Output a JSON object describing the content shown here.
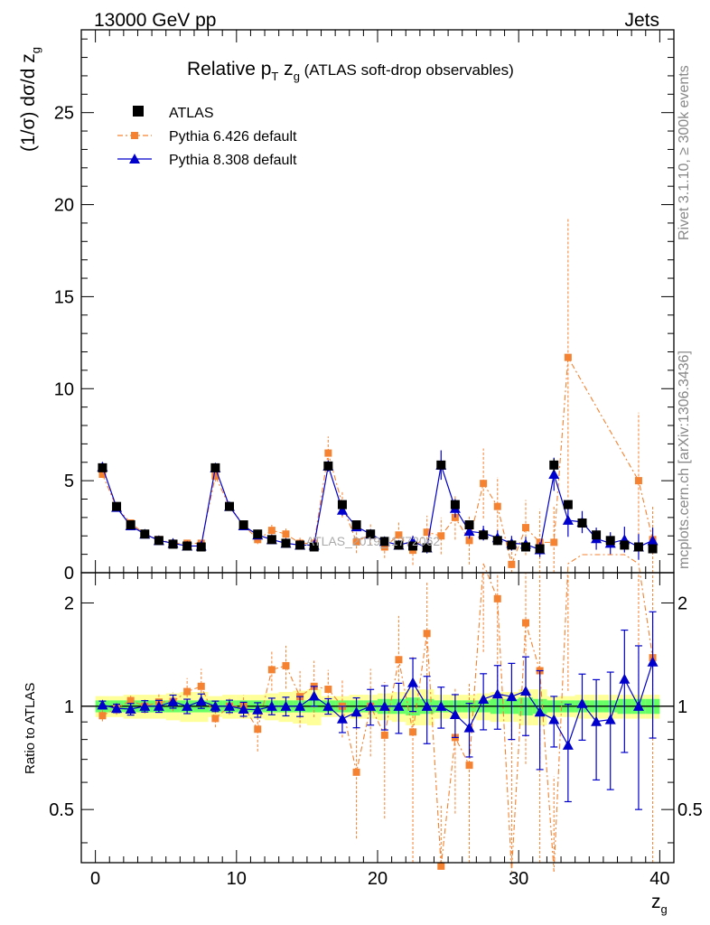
{
  "header": {
    "left": "13000 GeV pp",
    "right": "Jets"
  },
  "side_labels": {
    "rivet": "Rivet 3.1.10, ≥ 300k events",
    "mcplots": "mcplots.cern.ch [arXiv:1306.3436]"
  },
  "watermark": "ATLAS_2019_I1772062",
  "chart_data": {
    "type": "scatter",
    "title": "Relative p_T z_g (ATLAS soft-drop observables)",
    "title_parts": {
      "main": "Relative p",
      "sub_T": "T",
      "mid": " z",
      "sub_g": "g",
      "tail": " (ATLAS soft-drop observables)"
    },
    "xlabel": "z_g",
    "xlabel_parts": {
      "main": "z",
      "sub": "g"
    },
    "ylabel": "(1/σ) dσ/d z_g",
    "ylabel_parts": {
      "main": "(1/σ) dσ/d z",
      "sub": "g"
    },
    "ratio_ylabel": "Ratio to ATLAS",
    "xlim": [
      -1,
      41
    ],
    "ylim": [
      0,
      29.5
    ],
    "ratio_ylim": [
      0.35,
      2.45
    ],
    "xticks": [
      0,
      10,
      20,
      30,
      40
    ],
    "yticks": [
      0,
      5,
      10,
      15,
      20,
      25
    ],
    "ratio_yticks": [
      0.5,
      1,
      2
    ],
    "legend": [
      {
        "label": "ATLAS",
        "marker": "square",
        "color": "#000000"
      },
      {
        "label": "Pythia 6.426 default",
        "marker": "square-small",
        "color": "#f58231"
      },
      {
        "label": "Pythia 8.308 default",
        "marker": "triangle",
        "color": "#0000cc"
      }
    ],
    "x": [
      0.5,
      1.5,
      2.5,
      3.5,
      4.5,
      5.5,
      6.5,
      7.5,
      8.5,
      9.5,
      10.5,
      11.5,
      12.5,
      13.5,
      14.5,
      15.5,
      16.5,
      17.5,
      18.5,
      19.5,
      20.5,
      21.5,
      22.5,
      23.5,
      24.5,
      25.5,
      26.5,
      27.5,
      28.5,
      29.5,
      30.5,
      31.5,
      32.5,
      33.5,
      34.5,
      35.5,
      36.5,
      37.5,
      38.5,
      39.5
    ],
    "series": [
      {
        "name": "ATLAS",
        "color": "#000000",
        "values": [
          5.7,
          3.6,
          2.6,
          2.1,
          1.75,
          1.55,
          1.45,
          1.4,
          5.7,
          3.6,
          2.6,
          2.1,
          1.8,
          1.6,
          1.5,
          1.4,
          5.8,
          3.7,
          2.6,
          2.1,
          1.7,
          1.5,
          1.45,
          1.35,
          5.85,
          3.7,
          2.6,
          2.05,
          1.75,
          1.5,
          1.4,
          1.3,
          5.85,
          3.7,
          2.7,
          2.05,
          1.75,
          1.5,
          1.4,
          1.3
        ],
        "errors": [
          0.15,
          0.1,
          0.08,
          0.07,
          0.06,
          0.05,
          0.05,
          0.05,
          0.15,
          0.1,
          0.08,
          0.07,
          0.06,
          0.05,
          0.05,
          0.05,
          0.15,
          0.1,
          0.08,
          0.07,
          0.06,
          0.05,
          0.05,
          0.05,
          0.2,
          0.15,
          0.1,
          0.1,
          0.1,
          0.1,
          0.1,
          0.1,
          0.35,
          0.25,
          0.2,
          0.2,
          0.2,
          0.2,
          0.2,
          0.2
        ],
        "band_inner": [
          0.04,
          0.04,
          0.04,
          0.04,
          0.04,
          0.04,
          0.04,
          0.04,
          0.04,
          0.04,
          0.04,
          0.04,
          0.04,
          0.04,
          0.04,
          0.04,
          0.04,
          0.04,
          0.04,
          0.04,
          0.05,
          0.05,
          0.06,
          0.05,
          0.04,
          0.04,
          0.04,
          0.04,
          0.05,
          0.05,
          0.06,
          0.05,
          0.04,
          0.04,
          0.04,
          0.04,
          0.04,
          0.05,
          0.05,
          0.05
        ],
        "band_outer": [
          0.07,
          0.07,
          0.08,
          0.08,
          0.08,
          0.09,
          0.1,
          0.1,
          0.07,
          0.08,
          0.08,
          0.08,
          0.09,
          0.1,
          0.11,
          0.12,
          0.07,
          0.07,
          0.08,
          0.08,
          0.09,
          0.1,
          0.12,
          0.12,
          0.08,
          0.08,
          0.08,
          0.09,
          0.1,
          0.1,
          0.12,
          0.12,
          0.07,
          0.07,
          0.08,
          0.08,
          0.08,
          0.08,
          0.08,
          0.08
        ]
      },
      {
        "name": "Pythia 6.426 default",
        "color": "#f58231",
        "values": [
          5.35,
          3.55,
          2.7,
          2.1,
          1.8,
          1.6,
          1.6,
          1.6,
          5.25,
          3.6,
          2.6,
          1.8,
          2.3,
          2.1,
          1.6,
          1.6,
          6.5,
          3.7,
          1.67,
          2.1,
          1.4,
          2.05,
          1.22,
          2.2,
          2.0,
          3.0,
          1.75,
          4.85,
          3.6,
          0.45,
          2.45,
          1.65,
          1.65,
          11.7,
          null,
          null,
          null,
          null,
          5.0,
          1.8
        ],
        "errors": [
          0.2,
          0.15,
          0.12,
          0.1,
          0.1,
          0.1,
          0.15,
          0.2,
          0.3,
          0.2,
          0.2,
          0.25,
          0.3,
          0.3,
          0.3,
          0.3,
          0.9,
          0.7,
          0.6,
          0.6,
          0.6,
          0.7,
          0.8,
          0.9,
          1.0,
          1.2,
          1.3,
          1.9,
          1.6,
          1.2,
          1.5,
          1.8,
          2.0,
          7.6,
          null,
          null,
          null,
          null,
          3.7,
          1.8
        ],
        "ratio_clipped": [
          false,
          false,
          false,
          false,
          false,
          false,
          false,
          false,
          false,
          false,
          false,
          false,
          false,
          false,
          false,
          false,
          false,
          false,
          false,
          false,
          false,
          false,
          false,
          false,
          false,
          false,
          false,
          "high",
          false,
          "low",
          false,
          false,
          "low",
          "high",
          false,
          false,
          false,
          false,
          "high",
          false
        ]
      },
      {
        "name": "Pythia 8.308 default",
        "color": "#0000cc",
        "values": [
          5.75,
          3.55,
          2.55,
          2.1,
          1.75,
          1.6,
          1.45,
          1.45,
          5.7,
          3.6,
          2.55,
          2.05,
          1.8,
          1.6,
          1.5,
          1.5,
          5.8,
          3.4,
          2.5,
          2.1,
          1.7,
          1.5,
          1.7,
          1.35,
          5.85,
          3.5,
          2.25,
          2.15,
          1.9,
          1.6,
          1.55,
          1.25,
          5.35,
          2.85,
          2.75,
          1.85,
          1.6,
          1.8,
          1.4,
          1.75
        ],
        "errors": [
          0.15,
          0.1,
          0.1,
          0.08,
          0.07,
          0.07,
          0.07,
          0.07,
          0.2,
          0.15,
          0.12,
          0.1,
          0.1,
          0.1,
          0.1,
          0.1,
          0.3,
          0.3,
          0.25,
          0.25,
          0.25,
          0.25,
          0.3,
          0.3,
          0.8,
          0.5,
          0.4,
          0.4,
          0.4,
          0.4,
          0.4,
          0.4,
          0.9,
          0.9,
          0.6,
          0.6,
          0.6,
          0.7,
          0.7,
          0.7
        ]
      }
    ]
  }
}
